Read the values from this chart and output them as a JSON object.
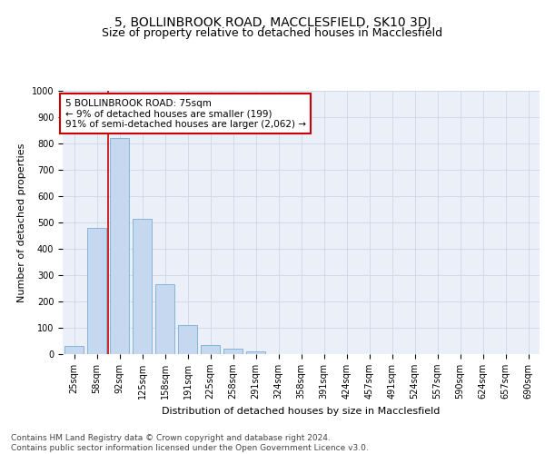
{
  "title1": "5, BOLLINBROOK ROAD, MACCLESFIELD, SK10 3DJ",
  "title2": "Size of property relative to detached houses in Macclesfield",
  "xlabel": "Distribution of detached houses by size in Macclesfield",
  "ylabel": "Number of detached properties",
  "categories": [
    "25sqm",
    "58sqm",
    "92sqm",
    "125sqm",
    "158sqm",
    "191sqm",
    "225sqm",
    "258sqm",
    "291sqm",
    "324sqm",
    "358sqm",
    "391sqm",
    "424sqm",
    "457sqm",
    "491sqm",
    "524sqm",
    "557sqm",
    "590sqm",
    "624sqm",
    "657sqm",
    "690sqm"
  ],
  "values": [
    30,
    480,
    820,
    515,
    265,
    110,
    35,
    22,
    10,
    0,
    0,
    0,
    0,
    0,
    0,
    0,
    0,
    0,
    0,
    0,
    0
  ],
  "bar_color": "#c5d8f0",
  "bar_edge_color": "#7aadd4",
  "vline_color": "#cc0000",
  "annotation_text": "5 BOLLINBROOK ROAD: 75sqm\n← 9% of detached houses are smaller (199)\n91% of semi-detached houses are larger (2,062) →",
  "annotation_box_color": "#ffffff",
  "annotation_box_edge": "#cc0000",
  "ylim": [
    0,
    1000
  ],
  "yticks": [
    0,
    100,
    200,
    300,
    400,
    500,
    600,
    700,
    800,
    900,
    1000
  ],
  "grid_color": "#ccd6e8",
  "bg_color": "#eaeff8",
  "footer": "Contains HM Land Registry data © Crown copyright and database right 2024.\nContains public sector information licensed under the Open Government Licence v3.0.",
  "title1_fontsize": 10,
  "title2_fontsize": 9,
  "axis_label_fontsize": 8,
  "tick_fontsize": 7,
  "annotation_fontsize": 7.5,
  "footer_fontsize": 6.5
}
